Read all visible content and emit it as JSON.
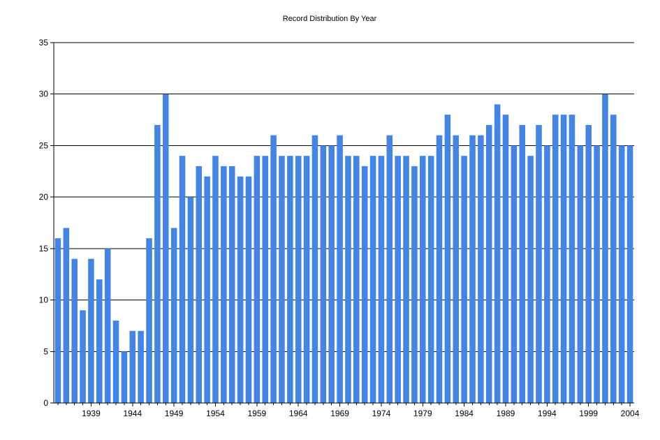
{
  "chart_data": {
    "type": "bar",
    "title": "Record Distribution By Year",
    "xlabel": "",
    "ylabel": "",
    "ylim": [
      0,
      35
    ],
    "yticks": [
      0,
      5,
      10,
      15,
      20,
      25,
      30,
      35
    ],
    "xticks": [
      1939,
      1944,
      1949,
      1954,
      1959,
      1964,
      1969,
      1974,
      1979,
      1984,
      1989,
      1994,
      1999,
      2004
    ],
    "grid": "horizontal",
    "bar_color": "#4285E6",
    "categories": [
      1935,
      1936,
      1937,
      1938,
      1939,
      1940,
      1941,
      1942,
      1943,
      1944,
      1945,
      1946,
      1947,
      1948,
      1949,
      1950,
      1951,
      1952,
      1953,
      1954,
      1955,
      1956,
      1957,
      1958,
      1959,
      1960,
      1961,
      1962,
      1963,
      1964,
      1965,
      1966,
      1967,
      1968,
      1969,
      1970,
      1971,
      1972,
      1973,
      1974,
      1975,
      1976,
      1977,
      1978,
      1979,
      1980,
      1981,
      1982,
      1983,
      1984,
      1985,
      1986,
      1987,
      1988,
      1989,
      1990,
      1991,
      1992,
      1993,
      1994,
      1995,
      1996,
      1997,
      1998,
      1999,
      2000,
      2001,
      2002,
      2003,
      2004
    ],
    "values": [
      16,
      17,
      14,
      9,
      14,
      12,
      15,
      8,
      5,
      7,
      7,
      16,
      27,
      30,
      17,
      24,
      20,
      23,
      22,
      24,
      23,
      23,
      22,
      22,
      24,
      24,
      26,
      24,
      24,
      24,
      24,
      26,
      25,
      25,
      26,
      24,
      24,
      23,
      24,
      24,
      26,
      24,
      24,
      23,
      24,
      24,
      26,
      28,
      26,
      24,
      26,
      26,
      27,
      29,
      28,
      25,
      27,
      24,
      27,
      25,
      28,
      28,
      28,
      25,
      27,
      25,
      30,
      28,
      25,
      25
    ]
  }
}
